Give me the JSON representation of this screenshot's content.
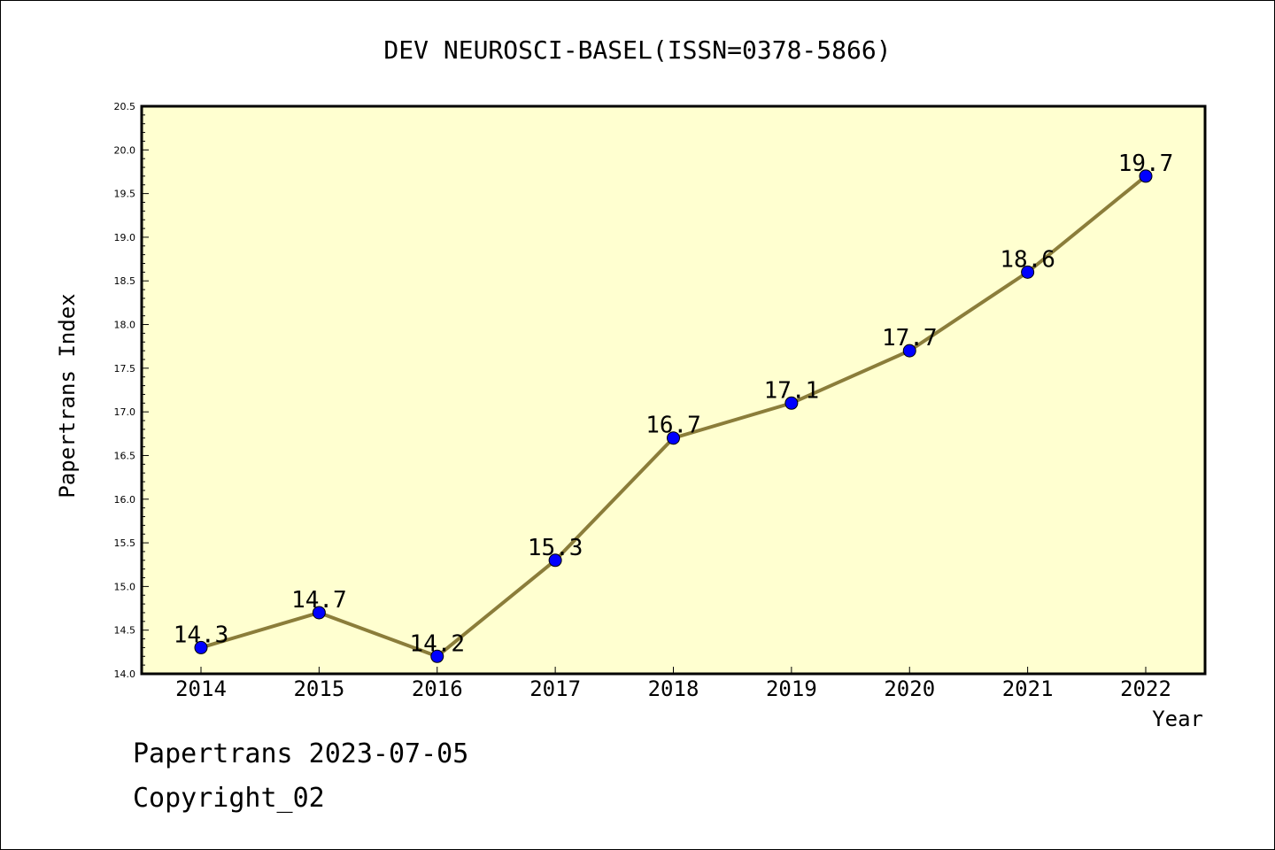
{
  "chart_data": {
    "type": "line",
    "title": "DEV NEUROSCI-BASEL(ISSN=0378-5866)",
    "xlabel": "Year",
    "ylabel": "Papertrans Index",
    "categories": [
      "2014",
      "2015",
      "2016",
      "2017",
      "2018",
      "2019",
      "2020",
      "2021",
      "2022"
    ],
    "series": [
      {
        "values": [
          14.3,
          14.7,
          14.2,
          15.3,
          16.7,
          17.1,
          17.7,
          18.6,
          19.7
        ],
        "data_labels": [
          "14.3",
          "14.7",
          "14.2",
          "15.3",
          "16.7",
          "17.1",
          "17.7",
          "18.6",
          "19.7"
        ],
        "line_color": "#8B7D3A",
        "marker_color": "#0000FF"
      }
    ],
    "ylim": [
      14.0,
      20.5
    ],
    "yticks": [
      "14.0",
      "14.5",
      "15.0",
      "15.5",
      "16.0",
      "16.5",
      "17.0",
      "17.5",
      "18.0",
      "18.5",
      "19.0",
      "19.5",
      "20.0",
      "20.5"
    ],
    "plot_background": "#FFFFD0",
    "grid": false,
    "legend": "none"
  },
  "footer": {
    "line1": "Papertrans 2023-07-05",
    "line2": "Copyright_02"
  }
}
